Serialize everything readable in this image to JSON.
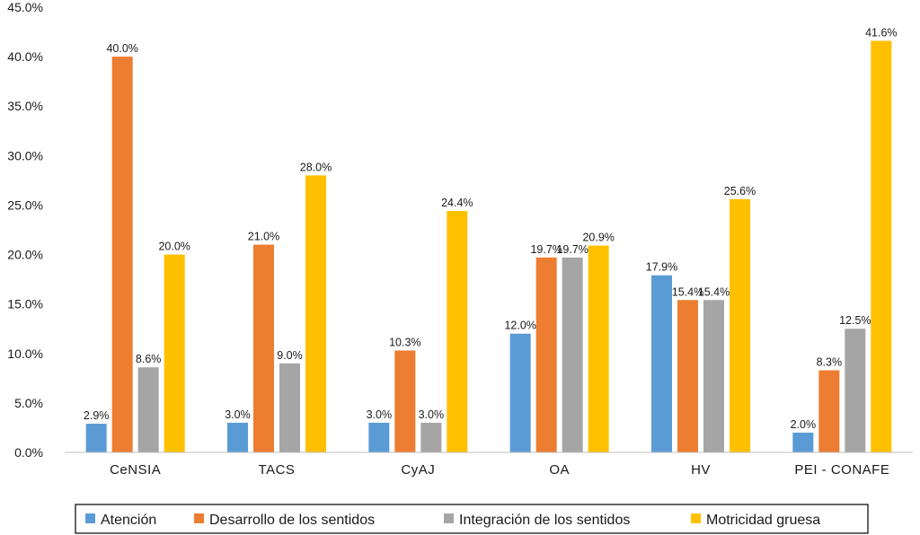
{
  "chart_data": {
    "type": "bar",
    "title": "",
    "xlabel": "",
    "ylabel": "",
    "ylim": [
      0,
      45
    ],
    "yticks": [
      "0.0%",
      "5.0%",
      "10.0%",
      "15.0%",
      "20.0%",
      "25.0%",
      "30.0%",
      "35.0%",
      "40.0%",
      "45.0%"
    ],
    "categories": [
      "CeNSIA",
      "TACS",
      "CyAJ",
      "OA",
      "HV",
      "PEI - CONAFE"
    ],
    "legend_position": "bottom",
    "grid": false,
    "series": [
      {
        "name": "Atención",
        "color": "#5B9BD5",
        "values": [
          2.9,
          3.0,
          3.0,
          12.0,
          17.9,
          2.0
        ],
        "labels": [
          "2.9%",
          "3.0%",
          "3.0%",
          "12.0%",
          "17.9%",
          "2.0%"
        ]
      },
      {
        "name": "Desarrollo de los sentidos",
        "color": "#ED7D31",
        "values": [
          40.0,
          21.0,
          10.3,
          19.7,
          15.4,
          8.3
        ],
        "labels": [
          "40.0%",
          "21.0%",
          "10.3%",
          "19.7%",
          "15.4%",
          "8.3%"
        ]
      },
      {
        "name": "Integración de los sentidos",
        "color": "#A5A5A5",
        "values": [
          8.6,
          9.0,
          3.0,
          19.7,
          15.4,
          12.5
        ],
        "labels": [
          "8.6%",
          "9.0%",
          "3.0%",
          "19.7%",
          "15.4%",
          "12.5%"
        ]
      },
      {
        "name": "Motricidad gruesa",
        "color": "#FFC000",
        "values": [
          20.0,
          28.0,
          24.4,
          20.9,
          25.6,
          41.6
        ],
        "labels": [
          "20.0%",
          "28.0%",
          "24.4%",
          "20.9%",
          "25.6%",
          "41.6%"
        ]
      }
    ]
  }
}
